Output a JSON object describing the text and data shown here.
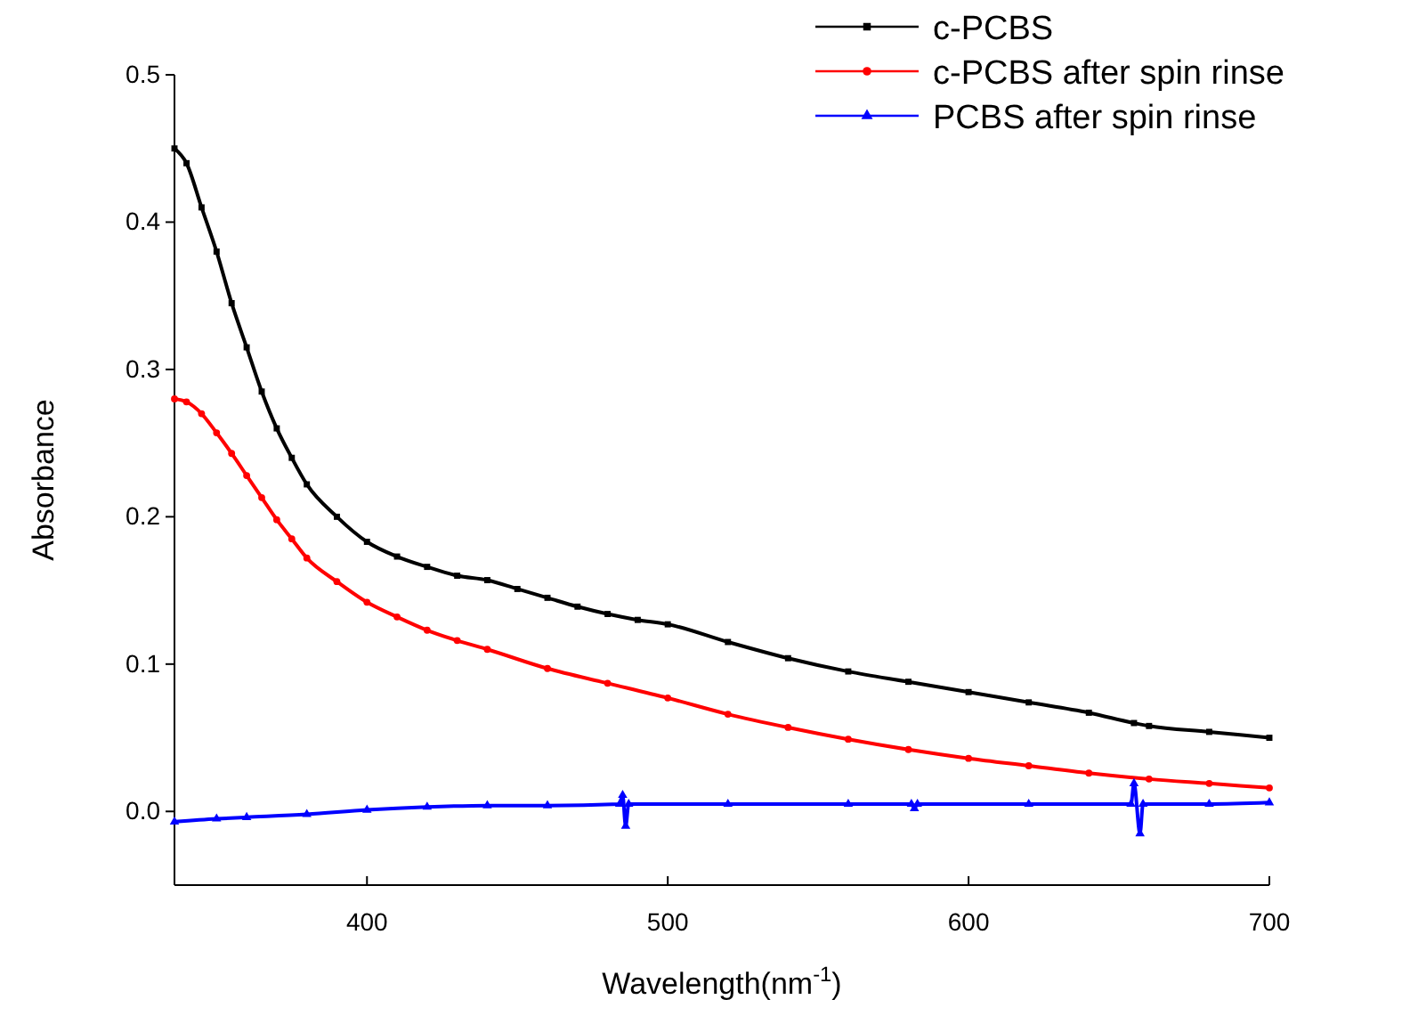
{
  "chart_data": {
    "type": "line",
    "xlabel": "Wavelength(nm$^{-1}$)",
    "ylabel": "Absorbance",
    "xlim": [
      336,
      700
    ],
    "ylim": [
      -0.05,
      0.5
    ],
    "xticks": [
      400,
      500,
      600,
      700
    ],
    "yticks": [
      {
        "value": 0,
        "label": "0.0"
      },
      0.1,
      0.2,
      0.3,
      0.4,
      0.5
    ],
    "legend": "top right",
    "grid": false,
    "series": [
      {
        "name": "c-PCBS",
        "color": "#000000",
        "marker": "square",
        "x": [
          336,
          340,
          345,
          350,
          355,
          360,
          365,
          370,
          375,
          380,
          390,
          400,
          410,
          420,
          430,
          440,
          450,
          460,
          470,
          480,
          490,
          500,
          520,
          540,
          560,
          580,
          600,
          620,
          640,
          655,
          660,
          680,
          700
        ],
        "values": [
          0.45,
          0.44,
          0.41,
          0.38,
          0.345,
          0.315,
          0.285,
          0.26,
          0.24,
          0.222,
          0.2,
          0.183,
          0.173,
          0.166,
          0.16,
          0.157,
          0.151,
          0.145,
          0.139,
          0.134,
          0.13,
          0.127,
          0.115,
          0.104,
          0.095,
          0.088,
          0.081,
          0.074,
          0.067,
          0.06,
          0.058,
          0.054,
          0.05
        ]
      },
      {
        "name": "c-PCBS after spin rinse",
        "color": "#ff0000",
        "marker": "circle",
        "x": [
          336,
          340,
          345,
          350,
          355,
          360,
          365,
          370,
          375,
          380,
          390,
          400,
          410,
          420,
          430,
          440,
          460,
          480,
          500,
          520,
          540,
          560,
          580,
          600,
          620,
          640,
          660,
          680,
          700
        ],
        "values": [
          0.28,
          0.278,
          0.27,
          0.257,
          0.243,
          0.228,
          0.213,
          0.198,
          0.185,
          0.172,
          0.156,
          0.142,
          0.132,
          0.123,
          0.116,
          0.11,
          0.097,
          0.087,
          0.077,
          0.066,
          0.057,
          0.049,
          0.042,
          0.036,
          0.031,
          0.026,
          0.022,
          0.019,
          0.016
        ]
      },
      {
        "name": "PCBS after spin rinse",
        "color": "#0000ff",
        "marker": "triangle",
        "x": [
          336,
          350,
          360,
          380,
          400,
          420,
          440,
          460,
          484,
          485,
          486,
          487,
          520,
          560,
          581,
          582,
          583,
          620,
          654,
          655,
          657,
          658,
          680,
          700
        ],
        "values": [
          -0.007,
          -0.005,
          -0.004,
          -0.002,
          0.001,
          0.003,
          0.004,
          0.004,
          0.005,
          0.011,
          -0.01,
          0.005,
          0.005,
          0.005,
          0.005,
          0.002,
          0.005,
          0.005,
          0.005,
          0.019,
          -0.015,
          0.005,
          0.005,
          0.006
        ]
      }
    ]
  }
}
